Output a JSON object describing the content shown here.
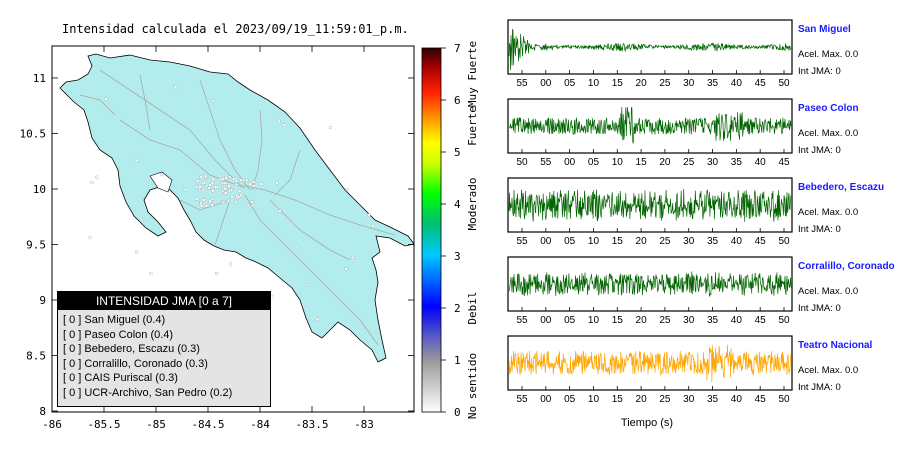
{
  "map": {
    "title": "Intensidad calculada el 2023/09/19_11:59:01_p.m.",
    "x_ticks": [
      "-86",
      "-85.5",
      "-85",
      "-84.5",
      "-84",
      "-83.5",
      "-83"
    ],
    "y_ticks": [
      "11",
      "10.5",
      "10",
      "9.5",
      "9",
      "8.5",
      "8"
    ],
    "land_color": "#b3ecec",
    "road_color": "#a9a9a9"
  },
  "colorbar": {
    "ticks": [
      "0",
      "1",
      "2",
      "3",
      "4",
      "5",
      "6",
      "7"
    ],
    "labels": [
      {
        "text": "No sentido",
        "from": 0,
        "to": 1
      },
      {
        "text": "Debil",
        "from": 1,
        "to": 3
      },
      {
        "text": "Moderado",
        "from": 3,
        "to": 5
      },
      {
        "text": "Fuerte",
        "from": 5,
        "to": 6
      },
      {
        "text": "Muy Fuerte",
        "from": 6,
        "to": 7
      }
    ]
  },
  "legend": {
    "header": "INTENSIDAD JMA [0 a 7]",
    "items": [
      "[ 0 ]  San Miguel (0.4)",
      "[ 0 ]  Paseo Colon (0.4)",
      "[ 0 ]  Bebedero, Escazu (0.3)",
      "[ 0 ]  Corralillo, Coronado (0.3)",
      "[ 0 ]  CAIS Puriscal (0.3)",
      "[ 0 ]  UCR-Archivo, San Pedro (0.2)"
    ]
  },
  "seismograms": {
    "xlabel": "Tiempo (s)",
    "panels": [
      {
        "station": "San Miguel",
        "accel": "Acel. Max. 0.0",
        "jma": "Int JMA: 0",
        "color": "#006400",
        "ticks": [
          "55",
          "00",
          "05",
          "10",
          "15",
          "20",
          "25",
          "30",
          "35",
          "40",
          "45",
          "50"
        ],
        "amp": 0.25,
        "burst": "onset"
      },
      {
        "station": "Paseo Colon",
        "accel": "Acel. Max. 0.0",
        "jma": "Int JMA: 0",
        "color": "#006400",
        "ticks": [
          "50",
          "55",
          "00",
          "05",
          "10",
          "15",
          "20",
          "25",
          "30",
          "35",
          "40",
          "45"
        ],
        "amp": 0.35,
        "burst": "mid"
      },
      {
        "station": "Bebedero, Escazu",
        "accel": "Acel. Max. 0.0",
        "jma": "Int JMA: 0",
        "color": "#006400",
        "ticks": [
          "55",
          "00",
          "05",
          "10",
          "15",
          "20",
          "25",
          "30",
          "35",
          "40",
          "45",
          "50"
        ],
        "amp": 0.6,
        "burst": "none"
      },
      {
        "station": "Corralillo, Coronado",
        "accel": "Acel. Max. 0.0",
        "jma": "Int JMA: 0",
        "color": "#006400",
        "ticks": [
          "55",
          "00",
          "05",
          "10",
          "15",
          "20",
          "25",
          "30",
          "35",
          "40",
          "45",
          "50"
        ],
        "amp": 0.45,
        "burst": "none"
      },
      {
        "station": "Teatro Nacional",
        "accel": "Acel. Max. 0.0",
        "jma": "Int JMA: 0",
        "color": "#ffa500",
        "ticks": [
          "55",
          "00",
          "05",
          "10",
          "15",
          "20",
          "25",
          "30",
          "35",
          "40",
          "45",
          "50"
        ],
        "amp": 0.5,
        "burst": "late"
      }
    ]
  },
  "chart_data": {
    "type": "line",
    "title": "Intensidad calculada el 2023/09/19_11:59:01_p.m.",
    "xlabel": "Tiempo (s)",
    "series": [
      {
        "name": "San Miguel",
        "intensity": 0.4
      },
      {
        "name": "Paseo Colon",
        "intensity": 0.4
      },
      {
        "name": "Bebedero, Escazu",
        "intensity": 0.3
      },
      {
        "name": "Corralillo, Coronado",
        "intensity": 0.3
      },
      {
        "name": "Teatro Nacional",
        "intensity": 0
      }
    ],
    "map_xlim": [
      -86,
      -82.5
    ],
    "map_ylim": [
      8,
      11.3
    ],
    "colorbar_range": [
      0,
      7
    ]
  }
}
